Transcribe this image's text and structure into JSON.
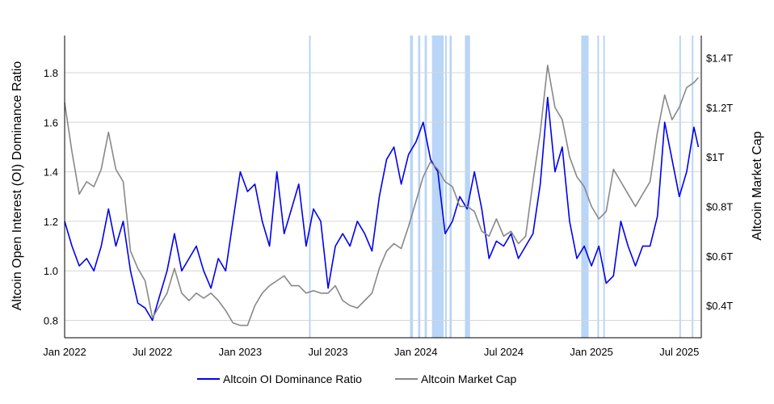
{
  "chart_data": {
    "type": "line",
    "title": "",
    "xlabel": "",
    "ylabel": "Altcoin Open Interest (OI) Dominance Ratio",
    "ylabel_right": "Altcoin Market Cap",
    "x_ticks": [
      "Jan 2022",
      "Jul 2022",
      "Jan 2023",
      "Jul 2023",
      "Jan 2024",
      "Jul 2024",
      "Jan 2025",
      "Jul 2025"
    ],
    "x_range_months": [
      0,
      43.5
    ],
    "y_left": {
      "ticks": [
        "0.8",
        "1.0",
        "1.2",
        "1.4",
        "1.6",
        "1.8"
      ],
      "tick_values": [
        0.8,
        1.0,
        1.2,
        1.4,
        1.6,
        1.8
      ],
      "range": [
        0.73,
        1.95
      ]
    },
    "y_right": {
      "ticks": [
        "$0.4T",
        "$0.6T",
        "$0.8T",
        "$1T",
        "$1.2T",
        "$1.4T"
      ],
      "tick_values": [
        0.4,
        0.6,
        0.8,
        1.0,
        1.2,
        1.4
      ],
      "range": [
        0.27,
        1.49
      ]
    },
    "grid": true,
    "legend": {
      "position": "bottom",
      "entries": [
        "Altcoin OI Dominance Ratio",
        "Altcoin Market Cap"
      ]
    },
    "series": [
      {
        "name": "Altcoin OI Dominance Ratio",
        "axis": "left",
        "color": "#0000ee",
        "x": [
          0,
          0.5,
          1,
          1.5,
          2,
          2.5,
          3,
          3.5,
          4,
          4.5,
          5,
          5.5,
          6,
          6.5,
          7,
          7.5,
          8,
          8.5,
          9,
          9.5,
          10,
          10.5,
          11,
          11.5,
          12,
          12.5,
          13,
          13.5,
          14,
          14.5,
          15,
          15.5,
          16,
          16.5,
          17,
          17.5,
          18,
          18.5,
          19,
          19.5,
          20,
          20.5,
          21,
          21.5,
          22,
          22.5,
          23,
          23.5,
          24,
          24.5,
          25,
          25.5,
          26,
          26.5,
          27,
          27.5,
          28,
          28.5,
          29,
          29.5,
          30,
          30.5,
          31,
          31.5,
          32,
          32.5,
          33,
          33.5,
          34,
          34.5,
          35,
          35.5,
          36,
          36.5,
          37,
          37.5,
          38,
          38.5,
          39,
          39.5,
          40,
          40.5,
          41,
          41.5,
          42,
          42.5,
          43,
          43.3
        ],
        "values": [
          1.2,
          1.1,
          1.02,
          1.05,
          1.0,
          1.1,
          1.25,
          1.1,
          1.2,
          1.0,
          0.87,
          0.85,
          0.8,
          0.9,
          1.0,
          1.15,
          1.0,
          1.05,
          1.1,
          1.0,
          0.93,
          1.05,
          1.0,
          1.2,
          1.4,
          1.32,
          1.35,
          1.2,
          1.1,
          1.4,
          1.15,
          1.25,
          1.35,
          1.1,
          1.25,
          1.2,
          0.93,
          1.1,
          1.15,
          1.1,
          1.2,
          1.15,
          1.08,
          1.3,
          1.45,
          1.5,
          1.35,
          1.47,
          1.52,
          1.6,
          1.45,
          1.4,
          1.15,
          1.2,
          1.3,
          1.25,
          1.4,
          1.25,
          1.05,
          1.12,
          1.1,
          1.15,
          1.05,
          1.1,
          1.15,
          1.35,
          1.7,
          1.4,
          1.5,
          1.2,
          1.05,
          1.1,
          1.02,
          1.1,
          0.95,
          0.98,
          1.2,
          1.1,
          1.02,
          1.1,
          1.1,
          1.22,
          1.6,
          1.45,
          1.3,
          1.4,
          1.58,
          1.5
        ]
      },
      {
        "name": "Altcoin Market Cap",
        "axis": "right",
        "color": "#888888",
        "x": [
          0,
          0.5,
          1,
          1.5,
          2,
          2.5,
          3,
          3.5,
          4,
          4.5,
          5,
          5.5,
          6,
          6.5,
          7,
          7.5,
          8,
          8.5,
          9,
          9.5,
          10,
          10.5,
          11,
          11.5,
          12,
          12.5,
          13,
          13.5,
          14,
          14.5,
          15,
          15.5,
          16,
          16.5,
          17,
          17.5,
          18,
          18.5,
          19,
          19.5,
          20,
          20.5,
          21,
          21.5,
          22,
          22.5,
          23,
          23.5,
          24,
          24.5,
          25,
          25.5,
          26,
          26.5,
          27,
          27.5,
          28,
          28.5,
          29,
          29.5,
          30,
          30.5,
          31,
          31.5,
          32,
          32.5,
          33,
          33.5,
          34,
          34.5,
          35,
          35.5,
          36,
          36.5,
          37,
          37.5,
          38,
          38.5,
          39,
          39.5,
          40,
          40.5,
          41,
          41.5,
          42,
          42.5,
          43,
          43.3
        ],
        "values": [
          1.22,
          1.02,
          0.85,
          0.9,
          0.88,
          0.95,
          1.1,
          0.95,
          0.9,
          0.62,
          0.55,
          0.5,
          0.35,
          0.4,
          0.45,
          0.55,
          0.45,
          0.42,
          0.45,
          0.43,
          0.45,
          0.42,
          0.38,
          0.33,
          0.32,
          0.32,
          0.4,
          0.45,
          0.48,
          0.5,
          0.52,
          0.48,
          0.48,
          0.45,
          0.46,
          0.45,
          0.45,
          0.48,
          0.42,
          0.4,
          0.39,
          0.42,
          0.45,
          0.55,
          0.62,
          0.65,
          0.63,
          0.72,
          0.82,
          0.92,
          0.98,
          0.95,
          0.9,
          0.88,
          0.8,
          0.8,
          0.78,
          0.7,
          0.68,
          0.75,
          0.68,
          0.7,
          0.65,
          0.68,
          0.9,
          1.1,
          1.37,
          1.2,
          1.15,
          1.0,
          0.92,
          0.88,
          0.8,
          0.75,
          0.78,
          0.95,
          0.9,
          0.85,
          0.8,
          0.85,
          0.9,
          1.1,
          1.25,
          1.15,
          1.2,
          1.28,
          1.3,
          1.32
        ]
      }
    ],
    "highlight_bands_months": [
      [
        16.7,
        16.78
      ],
      [
        23.6,
        23.8
      ],
      [
        24.15,
        24.3
      ],
      [
        24.6,
        24.75
      ],
      [
        25.1,
        25.9
      ],
      [
        26.0,
        26.1
      ],
      [
        26.3,
        26.45
      ],
      [
        27.35,
        27.7
      ],
      [
        35.3,
        35.8
      ],
      [
        36.4,
        36.5
      ],
      [
        36.8,
        36.9
      ],
      [
        42.0,
        42.1
      ],
      [
        42.85,
        42.95
      ]
    ],
    "highlight_color": "#b9d5f7"
  }
}
